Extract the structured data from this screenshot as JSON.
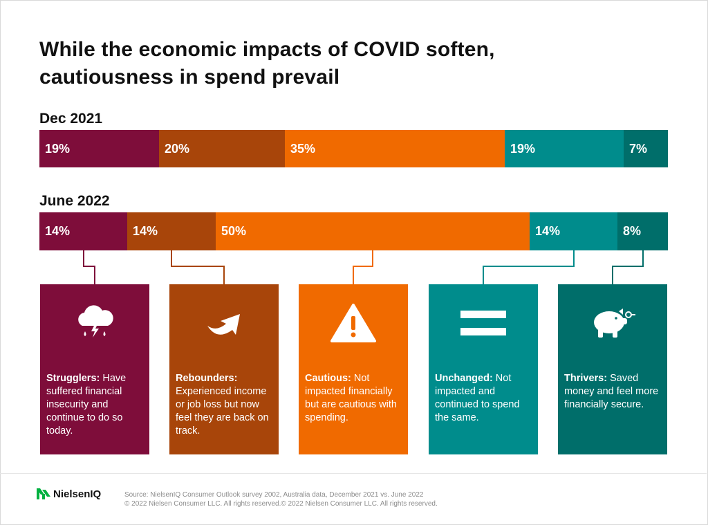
{
  "title_line1": "While the economic impacts of COVID soften,",
  "title_line2": "cautiousness in spend prevail",
  "chart_data": {
    "type": "bar",
    "orientation": "horizontal-stacked-100",
    "categories": [
      "Dec 2021",
      "June 2022"
    ],
    "series": [
      {
        "name": "Strugglers",
        "color": "#7e0d3a",
        "values": [
          19,
          14
        ],
        "labels": [
          "19%",
          "14%"
        ]
      },
      {
        "name": "Rebounders",
        "color": "#a8450a",
        "values": [
          20,
          14
        ],
        "labels": [
          "20%",
          "14%"
        ]
      },
      {
        "name": "Cautious",
        "color": "#f06a00",
        "values": [
          35,
          50
        ],
        "labels": [
          "35%",
          "50%"
        ]
      },
      {
        "name": "Unchanged",
        "color": "#008c8c",
        "values": [
          19,
          14
        ],
        "labels": [
          "19%",
          "14%"
        ]
      },
      {
        "name": "Thrivers",
        "color": "#006e6a",
        "values": [
          7,
          8
        ],
        "labels": [
          "7%",
          "8%"
        ]
      }
    ]
  },
  "cards": [
    {
      "icon": "storm-cloud-icon",
      "term": "Strugglers:",
      "text": " Have suffered financial insecurity and continue to do so today."
    },
    {
      "icon": "rebound-arrow-icon",
      "term": "Rebounders:",
      "text": " Experienced income or job loss but now feel they are back on track."
    },
    {
      "icon": "warning-icon",
      "term": "Cautious:",
      "text": " Not impacted financially but are cautious with spending."
    },
    {
      "icon": "equals-icon",
      "term": "Unchanged:",
      "text": " Not impacted and continued to spend the same."
    },
    {
      "icon": "piggy-bank-icon",
      "term": "Thrivers:",
      "text": " Saved money and feel more financially secure."
    }
  ],
  "logo_text": "NielsenIQ",
  "logo_color": "#00b140",
  "footnote_line1": "Source: NielsenIQ Consumer Outlook survey 2002, Australia data, December 2021 vs. June 2022",
  "footnote_line2": "© 2022 Nielsen Consumer LLC. All rights reserved.© 2022 Nielsen Consumer LLC. All rights reserved."
}
